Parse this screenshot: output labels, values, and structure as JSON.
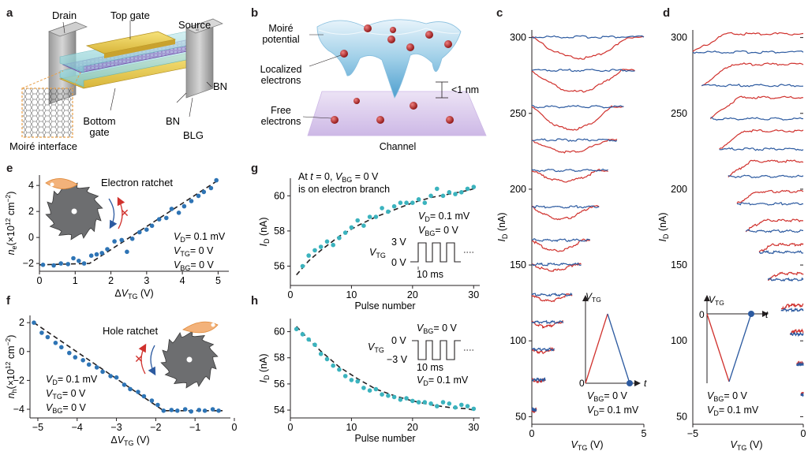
{
  "panels": {
    "a": {
      "label": "a",
      "drain": "Drain",
      "top_gate": "Top gate",
      "source": "Source",
      "bn_top": "BN",
      "bn_bottom": "BN",
      "blg": "BLG",
      "bottom_gate_1": "Bottom",
      "bottom_gate_2": "gate",
      "moire_interface": "Moiré interface"
    },
    "b": {
      "label": "b",
      "moire_1": "Moiré",
      "moire_2": "potential",
      "localized_1": "Localized",
      "localized_2": "electrons",
      "free_1": "Free",
      "free_2": "electrons",
      "spacing": "<1 nm",
      "channel": "Channel"
    },
    "c": {
      "label": "c",
      "ylabel": "I",
      "ylabel_sub": "D",
      "ylabel_unit": "(nA)",
      "xlabel": "V",
      "xlabel_sub": "TG",
      "xlabel_unit": "(V)",
      "inset_axis": "V",
      "inset_axis_sub": "TG",
      "inset_t": "t",
      "inset_zero": "0",
      "vbg_1": "V",
      "vbg_sub": "BG",
      "vbg_val": "= 0 V",
      "vd_1": "V",
      "vd_sub": "D",
      "vd_val": "= 0.1 mV"
    },
    "d": {
      "label": "d",
      "ylabel": "I",
      "ylabel_sub": "D",
      "ylabel_unit": "(nA)",
      "xlabel": "V",
      "xlabel_sub": "TG",
      "xlabel_unit": "(V)",
      "inset_axis": "V",
      "inset_axis_sub": "TG",
      "inset_t": "t",
      "inset_zero": "0",
      "vbg_1": "V",
      "vbg_sub": "BG",
      "vbg_val": "= 0 V",
      "vd_1": "V",
      "vd_sub": "D",
      "vd_val": "= 0.1 mV"
    },
    "e": {
      "label": "e",
      "title": "Electron ratchet",
      "cond_vd": "= 0.1 mV",
      "cond_vtg": "= 0 V",
      "cond_vbg": "= 0 V"
    },
    "f": {
      "label": "f",
      "title": "Hole ratchet",
      "cond_vd": "= 0.1 mV",
      "cond_vtg": "= 0 V",
      "cond_vbg": "= 0 V"
    },
    "g": {
      "label": "g",
      "note_1": "At",
      "note_t": "t",
      "note_2": "= 0,",
      "note_3": "= 0 V",
      "note_4": "is on electron branch",
      "cond_vd": "= 0.1 mV",
      "cond_vbg": "= 0 V",
      "pulse_high": "3 V",
      "pulse_low": "0 V",
      "pulse_width": "10 ms"
    },
    "h": {
      "label": "h",
      "cond_vbg": "= 0 V",
      "cond_vd": "= 0.1 mV",
      "pulse_high": "0 V",
      "pulse_low": "−3 V",
      "pulse_width": "10 ms"
    }
  },
  "chart_data": [
    {
      "id": "e",
      "type": "scatter",
      "xlabel": "ΔV_TG (V)",
      "ylabel": "n_e (×10^12 cm^-2)",
      "xlim": [
        0,
        5.3
      ],
      "ylim": [
        -2.6,
        4.8
      ],
      "xticks": [
        "0",
        "1",
        "2",
        "3",
        "4",
        "5"
      ],
      "yticks": [
        "−2",
        "0",
        "2",
        "4"
      ],
      "x": [
        0.1,
        0.4,
        0.6,
        0.8,
        0.95,
        1.1,
        1.25,
        1.45,
        1.6,
        1.75,
        1.9,
        2.1,
        2.3,
        2.45,
        2.6,
        2.8,
        3.0,
        3.15,
        3.35,
        3.55,
        3.7,
        3.9,
        4.05,
        4.25,
        4.45,
        4.6,
        4.8,
        4.95
      ],
      "y": [
        -2.1,
        -2.15,
        -2.0,
        -2.05,
        -1.6,
        -1.8,
        -2.0,
        -1.4,
        -1.3,
        -1.2,
        -0.9,
        -0.3,
        -0.2,
        -1.1,
        -0.1,
        0.4,
        0.6,
        0.9,
        1.4,
        1.5,
        2.2,
        1.9,
        2.4,
        2.8,
        3.2,
        3.5,
        3.8,
        4.4
      ],
      "fit_x": [
        0,
        1.4,
        5.0
      ],
      "fit_y": [
        -2.1,
        -2.0,
        4.4
      ]
    },
    {
      "id": "f",
      "type": "scatter",
      "xlabel": "ΔV_TG (V)",
      "ylabel": "n_h (×10^12 cm^-2)",
      "xlim": [
        -5.2,
        -0.1
      ],
      "ylim": [
        -4.6,
        2.5
      ],
      "xticks": [
        "−5",
        "−4",
        "−3",
        "−2",
        "−1",
        "0"
      ],
      "yticks": [
        "−4",
        "−2",
        "0",
        "2"
      ],
      "x": [
        -5.1,
        -4.9,
        -4.75,
        -4.55,
        -4.4,
        -4.2,
        -4.05,
        -3.85,
        -3.7,
        -3.5,
        -3.35,
        -3.15,
        -3.0,
        -2.8,
        -2.65,
        -2.45,
        -2.3,
        -2.1,
        -1.95,
        -1.8,
        -1.6,
        -1.45,
        -1.25,
        -1.1,
        -0.9,
        -0.75,
        -0.55,
        -0.4
      ],
      "y": [
        2.0,
        1.3,
        1.0,
        0.6,
        0.3,
        -0.1,
        -0.4,
        -0.6,
        -0.9,
        -1.1,
        -1.4,
        -1.7,
        -1.8,
        -2.3,
        -2.6,
        -2.8,
        -3.1,
        -3.4,
        -3.7,
        -4.1,
        -4.05,
        -4.1,
        -4.0,
        -4.15,
        -4.05,
        -4.1,
        -4.0,
        -4.1
      ],
      "fit_x": [
        -5.1,
        -1.8,
        -0.3
      ],
      "fit_y": [
        2.0,
        -4.1,
        -4.1
      ]
    },
    {
      "id": "g",
      "type": "scatter",
      "xlabel": "Pulse number",
      "ylabel": "I_D (nA)",
      "xlim": [
        0,
        31
      ],
      "ylim": [
        54.9,
        61.0
      ],
      "xticks": [
        "0",
        "10",
        "20",
        "30"
      ],
      "yticks": [
        "56",
        "58",
        "60"
      ],
      "x": [
        2,
        3,
        4,
        5,
        6,
        7,
        8,
        9,
        10,
        11,
        12,
        13,
        14,
        15,
        16,
        17,
        18,
        19,
        20,
        21,
        22,
        23,
        24,
        25,
        26,
        27,
        28,
        29,
        30
      ],
      "y": [
        56.0,
        56.6,
        56.9,
        57.1,
        57.4,
        57.2,
        57.6,
        57.9,
        58.2,
        58.6,
        58.3,
        58.8,
        58.8,
        59.3,
        59.1,
        59.4,
        59.6,
        59.6,
        59.6,
        59.8,
        59.6,
        60.0,
        60.4,
        60.0,
        60.2,
        60.1,
        60.2,
        60.4,
        60.5
      ],
      "fit_x": [
        1,
        3,
        5,
        8,
        11,
        14,
        17,
        20,
        23,
        26,
        29,
        30
      ],
      "fit_y": [
        55.5,
        56.3,
        56.9,
        57.7,
        58.3,
        58.8,
        59.2,
        59.6,
        59.9,
        60.1,
        60.3,
        60.4
      ]
    },
    {
      "id": "h",
      "type": "scatter",
      "xlabel": "Pulse number",
      "ylabel": "I_D (nA)",
      "xlim": [
        0,
        31
      ],
      "ylim": [
        53.4,
        61.0
      ],
      "xticks": [
        "0",
        "10",
        "20",
        "30"
      ],
      "yticks": [
        "54",
        "56",
        "58",
        "60"
      ],
      "x": [
        1,
        2,
        3,
        4,
        5,
        6,
        7,
        8,
        9,
        10,
        11,
        12,
        13,
        14,
        15,
        16,
        17,
        18,
        19,
        20,
        21,
        22,
        23,
        24,
        25,
        26,
        27,
        28,
        29,
        30
      ],
      "y": [
        60.2,
        59.8,
        59.4,
        59.0,
        58.3,
        57.9,
        57.4,
        57.1,
        56.6,
        56.3,
        56.2,
        55.7,
        55.5,
        55.6,
        55.2,
        55.1,
        55.0,
        54.8,
        54.9,
        54.7,
        54.6,
        54.6,
        54.5,
        54.3,
        54.6,
        54.5,
        54.2,
        54.4,
        54.3,
        54.1
      ],
      "fit_x": [
        1,
        3,
        5,
        8,
        11,
        14,
        17,
        20,
        23,
        26,
        29,
        30
      ],
      "fit_y": [
        60.4,
        59.4,
        58.5,
        57.3,
        56.4,
        55.6,
        55.1,
        54.7,
        54.4,
        54.2,
        54.1,
        54.0
      ]
    },
    {
      "id": "c",
      "type": "line",
      "xlabel": "V_TG (V)",
      "ylabel": "I_D (nA)",
      "xlim": [
        0,
        5
      ],
      "ylim": [
        45,
        305
      ],
      "xticks": [
        "0",
        "5"
      ],
      "yticks": [
        "50",
        "100",
        "150",
        "200",
        "250",
        "300"
      ],
      "loops": [
        {
          "base": 300,
          "xend": 5.0,
          "dip": 14
        },
        {
          "base": 278,
          "xend": 4.6,
          "dip": 14
        },
        {
          "base": 254,
          "xend": 4.1,
          "dip": 15
        },
        {
          "base": 232,
          "xend": 3.8,
          "dip": 8
        },
        {
          "base": 212,
          "xend": 3.4,
          "dip": 7
        },
        {
          "base": 188,
          "xend": 3.0,
          "dip": 8
        },
        {
          "base": 166,
          "xend": 2.6,
          "dip": 7
        },
        {
          "base": 150,
          "xend": 2.2,
          "dip": 4
        },
        {
          "base": 130,
          "xend": 1.8,
          "dip": 4
        },
        {
          "base": 112,
          "xend": 1.4,
          "dip": 3
        },
        {
          "base": 94,
          "xend": 1.0,
          "dip": 2
        },
        {
          "base": 74,
          "xend": 0.6,
          "dip": 1
        },
        {
          "base": 54,
          "xend": 0.2,
          "dip": 1
        }
      ]
    },
    {
      "id": "d",
      "type": "line",
      "xlabel": "V_TG (V)",
      "ylabel": "I_D (nA)",
      "xlim": [
        -5,
        0
      ],
      "ylim": [
        45,
        305
      ],
      "xticks": [
        "−5",
        "0"
      ],
      "yticks": [
        "50",
        "100",
        "150",
        "200",
        "250",
        "300"
      ],
      "loops": [
        {
          "base": 290,
          "xstart": -5.0,
          "rise": 12
        },
        {
          "base": 268,
          "xstart": -4.6,
          "rise": 14
        },
        {
          "base": 246,
          "xstart": -4.2,
          "rise": 14
        },
        {
          "base": 226,
          "xstart": -3.8,
          "rise": 12
        },
        {
          "base": 208,
          "xstart": -3.4,
          "rise": 10
        },
        {
          "base": 190,
          "xstart": -3.0,
          "rise": 8
        },
        {
          "base": 172,
          "xstart": -2.6,
          "rise": 7
        },
        {
          "base": 158,
          "xstart": -2.0,
          "rise": 5
        },
        {
          "base": 140,
          "xstart": -1.6,
          "rise": 4
        },
        {
          "base": 120,
          "xstart": -1.0,
          "rise": 3
        },
        {
          "base": 104,
          "xstart": -0.6,
          "rise": 2
        },
        {
          "base": 84,
          "xstart": -0.3,
          "rise": 1
        },
        {
          "base": 64,
          "xstart": -0.1,
          "rise": 1
        }
      ]
    }
  ]
}
